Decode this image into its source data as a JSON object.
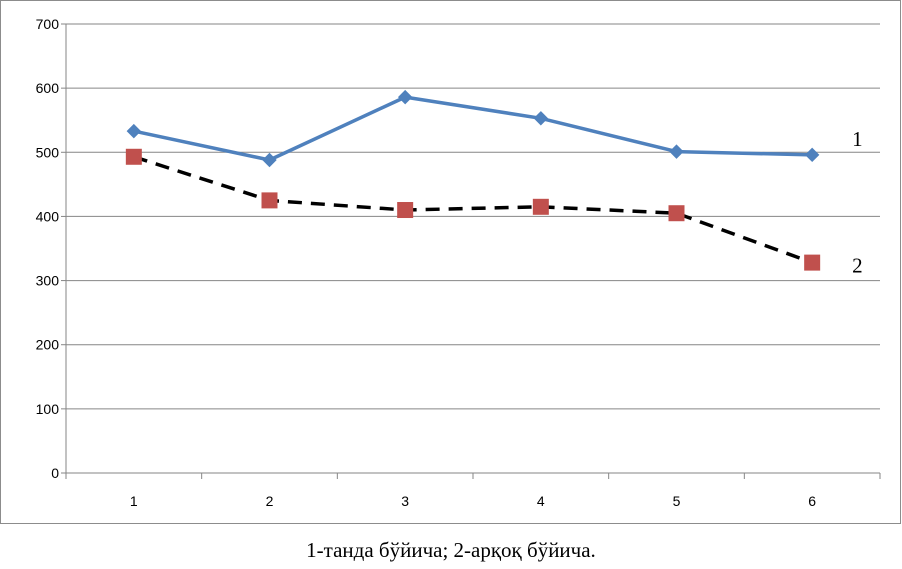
{
  "chart_data": {
    "type": "line",
    "categories": [
      "1",
      "2",
      "3",
      "4",
      "5",
      "6"
    ],
    "ylim": [
      0,
      700
    ],
    "yticks": [
      0,
      100,
      200,
      300,
      400,
      500,
      600,
      700
    ],
    "grid": true,
    "series": [
      {
        "name": "1",
        "values": [
          533,
          488,
          586,
          553,
          501,
          496
        ],
        "color": "#4f81bd",
        "marker": "diamond",
        "line_style": "solid"
      },
      {
        "name": "2",
        "values": [
          493,
          425,
          410,
          415,
          405,
          328
        ],
        "color": "#c0504d",
        "marker": "square",
        "line_style": "dashed",
        "line_color": "#000000"
      }
    ]
  },
  "caption": "1-танда бўйича; 2-арқоқ бўйича."
}
